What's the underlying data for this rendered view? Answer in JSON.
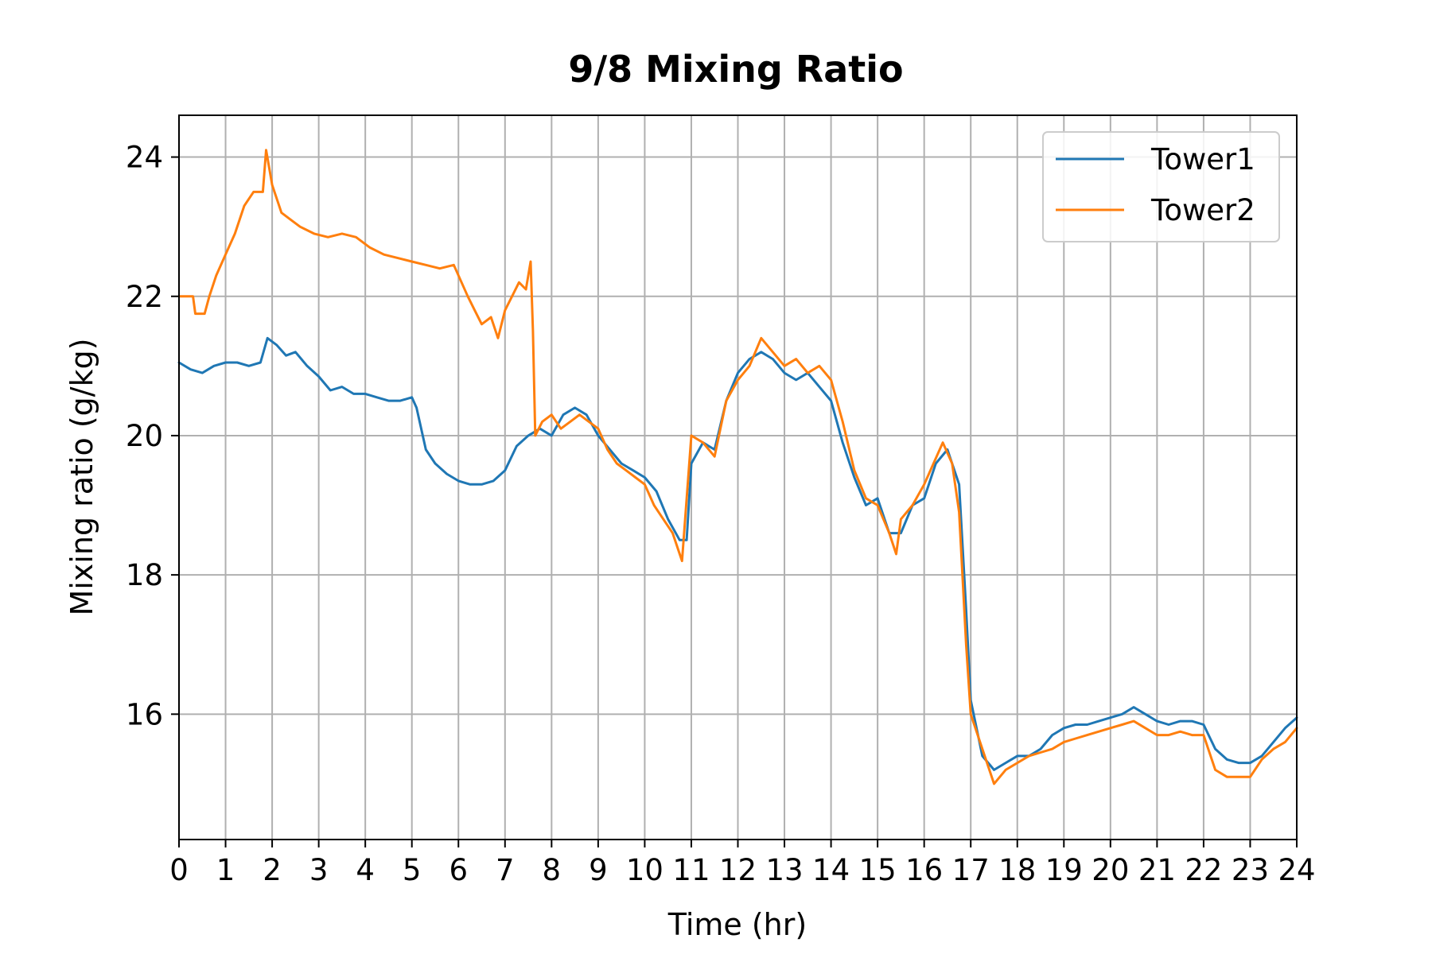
{
  "chart_data": {
    "type": "line",
    "title": "9/8 Mixing Ratio",
    "xlabel": "Time (hr)",
    "ylabel": "Mixing ratio (g/kg)",
    "xlim": [
      0,
      24
    ],
    "ylim": [
      14.2,
      24.6
    ],
    "xticks": [
      0,
      1,
      2,
      3,
      4,
      5,
      6,
      7,
      8,
      9,
      10,
      11,
      12,
      13,
      14,
      15,
      16,
      17,
      18,
      19,
      20,
      21,
      22,
      23,
      24
    ],
    "xtick_labels": [
      "0",
      "1",
      "2",
      "3",
      "4",
      "5",
      "6",
      "7",
      "8",
      "9",
      "10",
      "11",
      "12",
      "13",
      "14",
      "15",
      "16",
      "17",
      "18",
      "19",
      "20",
      "21",
      "22",
      "23",
      "24"
    ],
    "yticks": [
      16,
      18,
      20,
      22,
      24
    ],
    "ytick_labels": [
      "16",
      "18",
      "20",
      "22",
      "24"
    ],
    "grid": true,
    "legend_position": "top-right",
    "series": [
      {
        "name": "Tower1",
        "color": "#1f77b4",
        "x": [
          0,
          0.25,
          0.5,
          0.75,
          1.0,
          1.25,
          1.5,
          1.75,
          1.9,
          2.1,
          2.3,
          2.5,
          2.75,
          3.0,
          3.25,
          3.5,
          3.75,
          4.0,
          4.25,
          4.5,
          4.75,
          5.0,
          5.1,
          5.3,
          5.5,
          5.75,
          6.0,
          6.25,
          6.5,
          6.75,
          7.0,
          7.25,
          7.5,
          7.75,
          8.0,
          8.25,
          8.5,
          8.75,
          9.0,
          9.25,
          9.5,
          9.75,
          10.0,
          10.25,
          10.5,
          10.75,
          10.9,
          11.0,
          11.25,
          11.5,
          11.75,
          12.0,
          12.25,
          12.5,
          12.75,
          13.0,
          13.25,
          13.5,
          13.75,
          14.0,
          14.25,
          14.5,
          14.75,
          15.0,
          15.25,
          15.5,
          15.75,
          16.0,
          16.25,
          16.5,
          16.75,
          16.9,
          17.0,
          17.25,
          17.5,
          17.75,
          18.0,
          18.25,
          18.5,
          18.75,
          19.0,
          19.25,
          19.5,
          19.75,
          20.0,
          20.25,
          20.5,
          20.75,
          21.0,
          21.25,
          21.5,
          21.75,
          22.0,
          22.25,
          22.5,
          22.75,
          23.0,
          23.25,
          23.5,
          23.75,
          24.0
        ],
        "values": [
          21.05,
          20.95,
          20.9,
          21.0,
          21.05,
          21.05,
          21.0,
          21.05,
          21.4,
          21.3,
          21.15,
          21.2,
          21.0,
          20.85,
          20.65,
          20.7,
          20.6,
          20.6,
          20.55,
          20.5,
          20.5,
          20.55,
          20.4,
          19.8,
          19.6,
          19.45,
          19.35,
          19.3,
          19.3,
          19.35,
          19.5,
          19.85,
          20.0,
          20.1,
          20.0,
          20.3,
          20.4,
          20.3,
          20.0,
          19.8,
          19.6,
          19.5,
          19.4,
          19.2,
          18.8,
          18.5,
          18.5,
          19.6,
          19.9,
          19.8,
          20.5,
          20.9,
          21.1,
          21.2,
          21.1,
          20.9,
          20.8,
          20.9,
          20.7,
          20.5,
          19.9,
          19.4,
          19.0,
          19.1,
          18.6,
          18.6,
          19.0,
          19.1,
          19.6,
          19.8,
          19.3,
          17.5,
          16.2,
          15.4,
          15.2,
          15.3,
          15.4,
          15.4,
          15.5,
          15.7,
          15.8,
          15.85,
          15.85,
          15.9,
          15.95,
          16.0,
          16.1,
          16.0,
          15.9,
          15.85,
          15.9,
          15.9,
          15.85,
          15.5,
          15.35,
          15.3,
          15.3,
          15.4,
          15.6,
          15.8,
          15.95
        ]
      },
      {
        "name": "Tower2",
        "color": "#ff7f0e",
        "x": [
          0,
          0.3,
          0.35,
          0.55,
          0.65,
          0.8,
          1.0,
          1.2,
          1.4,
          1.6,
          1.8,
          1.87,
          2.0,
          2.2,
          2.4,
          2.6,
          2.9,
          3.2,
          3.5,
          3.8,
          4.1,
          4.4,
          4.7,
          5.0,
          5.3,
          5.6,
          5.9,
          6.2,
          6.35,
          6.5,
          6.7,
          6.85,
          7.0,
          7.15,
          7.3,
          7.45,
          7.55,
          7.6,
          7.65,
          7.8,
          8.0,
          8.2,
          8.4,
          8.6,
          8.8,
          9.0,
          9.2,
          9.4,
          9.6,
          9.8,
          10.0,
          10.2,
          10.4,
          10.6,
          10.8,
          11.0,
          11.25,
          11.5,
          11.75,
          12.0,
          12.25,
          12.5,
          12.75,
          13.0,
          13.25,
          13.5,
          13.75,
          14.0,
          14.25,
          14.5,
          14.75,
          15.0,
          15.25,
          15.4,
          15.5,
          15.75,
          16.0,
          16.2,
          16.4,
          16.6,
          16.75,
          16.9,
          17.0,
          17.25,
          17.5,
          17.75,
          18.0,
          18.25,
          18.5,
          18.75,
          19.0,
          19.25,
          19.5,
          19.75,
          20.0,
          20.25,
          20.5,
          20.75,
          21.0,
          21.25,
          21.5,
          21.75,
          22.0,
          22.25,
          22.5,
          22.75,
          23.0,
          23.25,
          23.5,
          23.75,
          24.0
        ],
        "values": [
          22.0,
          22.0,
          21.75,
          21.75,
          22.0,
          22.3,
          22.6,
          22.9,
          23.3,
          23.5,
          23.5,
          24.1,
          23.6,
          23.2,
          23.1,
          23.0,
          22.9,
          22.85,
          22.9,
          22.85,
          22.7,
          22.6,
          22.55,
          22.5,
          22.45,
          22.4,
          22.45,
          22.0,
          21.8,
          21.6,
          21.7,
          21.4,
          21.8,
          22.0,
          22.2,
          22.1,
          22.5,
          21.5,
          20.0,
          20.2,
          20.3,
          20.1,
          20.2,
          20.3,
          20.2,
          20.1,
          19.8,
          19.6,
          19.5,
          19.4,
          19.3,
          19.0,
          18.8,
          18.6,
          18.2,
          20.0,
          19.9,
          19.7,
          20.5,
          20.8,
          21.0,
          21.4,
          21.2,
          21.0,
          21.1,
          20.9,
          21.0,
          20.8,
          20.2,
          19.5,
          19.1,
          19.0,
          18.6,
          18.3,
          18.8,
          19.0,
          19.3,
          19.6,
          19.9,
          19.6,
          18.9,
          17.0,
          16.0,
          15.5,
          15.0,
          15.2,
          15.3,
          15.4,
          15.45,
          15.5,
          15.6,
          15.65,
          15.7,
          15.75,
          15.8,
          15.85,
          15.9,
          15.8,
          15.7,
          15.7,
          15.75,
          15.7,
          15.7,
          15.2,
          15.1,
          15.1,
          15.1,
          15.35,
          15.5,
          15.6,
          15.8
        ]
      }
    ]
  }
}
